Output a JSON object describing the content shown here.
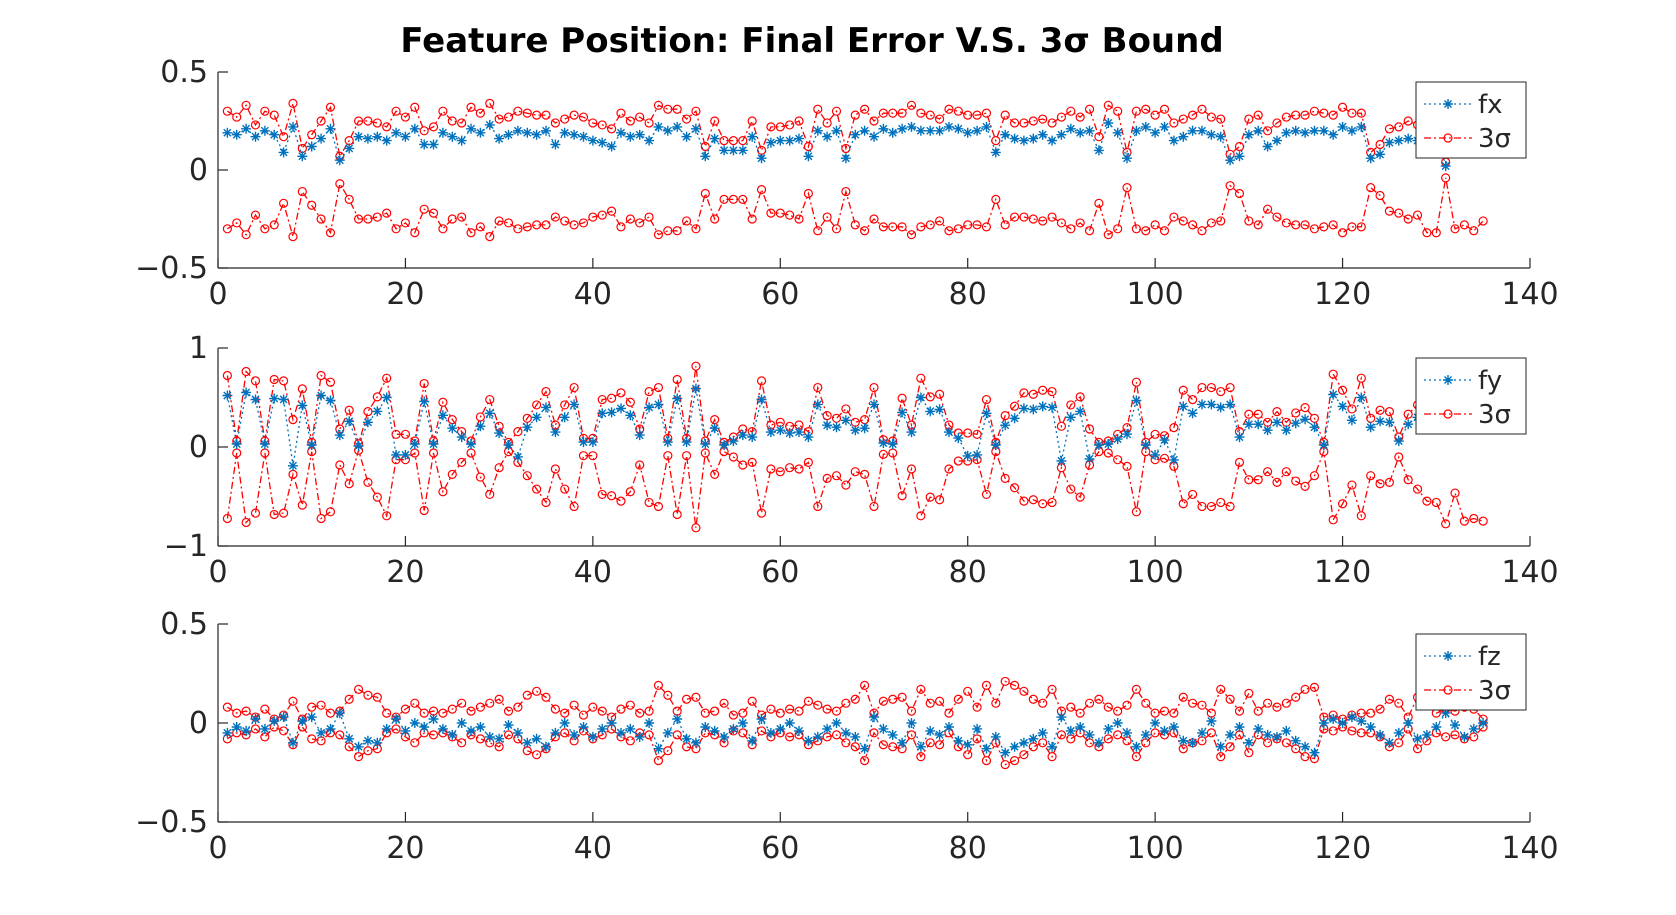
{
  "title": "Feature Position: Final Error V.S. 3σ Bound",
  "colors": {
    "estimate": "#0072BD",
    "bound": "#FF0000",
    "axis": "#262626"
  },
  "chart_data": [
    {
      "type": "line",
      "name": "fx",
      "xlim": [
        0,
        140
      ],
      "ylim": [
        -0.5,
        0.5
      ],
      "xticks": [
        0,
        20,
        40,
        60,
        80,
        100,
        120,
        140
      ],
      "yticks": [
        -0.5,
        0,
        0.5
      ],
      "xtick_labels": [
        "0",
        "20",
        "40",
        "60",
        "80",
        "100",
        "120",
        "140"
      ],
      "ytick_labels": [
        "−0.5",
        "0",
        "0.5"
      ],
      "legend": [
        "fx",
        "3σ"
      ],
      "legend_position": "top-right",
      "x_start": 1,
      "estimate": [
        0.19,
        0.18,
        0.21,
        0.17,
        0.2,
        0.18,
        0.09,
        0.22,
        0.07,
        0.12,
        0.16,
        0.21,
        0.05,
        0.11,
        0.17,
        0.16,
        0.17,
        0.15,
        0.19,
        0.17,
        0.21,
        0.13,
        0.13,
        0.19,
        0.17,
        0.15,
        0.21,
        0.19,
        0.23,
        0.16,
        0.18,
        0.2,
        0.19,
        0.18,
        0.2,
        0.13,
        0.19,
        0.18,
        0.17,
        0.15,
        0.14,
        0.12,
        0.19,
        0.17,
        0.18,
        0.15,
        0.22,
        0.2,
        0.22,
        0.17,
        0.21,
        0.07,
        0.16,
        0.1,
        0.1,
        0.1,
        0.17,
        0.06,
        0.14,
        0.15,
        0.15,
        0.16,
        0.07,
        0.2,
        0.17,
        0.2,
        0.06,
        0.18,
        0.2,
        0.17,
        0.21,
        0.19,
        0.21,
        0.22,
        0.2,
        0.2,
        0.2,
        0.22,
        0.21,
        0.19,
        0.2,
        0.22,
        0.09,
        0.18,
        0.16,
        0.15,
        0.16,
        0.18,
        0.15,
        0.18,
        0.21,
        0.19,
        0.2,
        0.1,
        0.24,
        0.19,
        0.06,
        0.2,
        0.22,
        0.19,
        0.22,
        0.15,
        0.17,
        0.2,
        0.2,
        0.18,
        0.17,
        0.05,
        0.07,
        0.18,
        0.2,
        0.12,
        0.15,
        0.19,
        0.2,
        0.19,
        0.2,
        0.2,
        0.18,
        0.22,
        0.2,
        0.22,
        0.06,
        0.08,
        0.14,
        0.15,
        0.16,
        0.15,
        0.2,
        0.2,
        0.02,
        0.22,
        0.2,
        0.21,
        0.19
      ],
      "bound_upper": [
        0.3,
        0.27,
        0.33,
        0.23,
        0.3,
        0.28,
        0.17,
        0.34,
        0.11,
        0.18,
        0.25,
        0.32,
        0.07,
        0.15,
        0.25,
        0.25,
        0.24,
        0.22,
        0.3,
        0.27,
        0.32,
        0.2,
        0.22,
        0.3,
        0.25,
        0.24,
        0.32,
        0.29,
        0.34,
        0.26,
        0.27,
        0.3,
        0.29,
        0.28,
        0.28,
        0.24,
        0.26,
        0.28,
        0.27,
        0.24,
        0.23,
        0.21,
        0.29,
        0.25,
        0.27,
        0.24,
        0.33,
        0.31,
        0.31,
        0.26,
        0.3,
        0.12,
        0.25,
        0.15,
        0.15,
        0.15,
        0.25,
        0.1,
        0.22,
        0.22,
        0.23,
        0.25,
        0.12,
        0.31,
        0.24,
        0.3,
        0.11,
        0.28,
        0.31,
        0.25,
        0.29,
        0.29,
        0.29,
        0.33,
        0.29,
        0.28,
        0.26,
        0.31,
        0.3,
        0.28,
        0.28,
        0.29,
        0.15,
        0.28,
        0.24,
        0.24,
        0.25,
        0.26,
        0.24,
        0.27,
        0.3,
        0.27,
        0.31,
        0.17,
        0.33,
        0.3,
        0.09,
        0.3,
        0.31,
        0.28,
        0.31,
        0.24,
        0.26,
        0.28,
        0.31,
        0.27,
        0.26,
        0.08,
        0.12,
        0.26,
        0.28,
        0.2,
        0.24,
        0.27,
        0.28,
        0.28,
        0.3,
        0.29,
        0.28,
        0.32,
        0.29,
        0.29,
        0.09,
        0.13,
        0.21,
        0.22,
        0.25,
        0.23,
        0.32,
        0.32,
        0.04,
        0.3,
        0.28,
        0.31,
        0.26
      ]
    },
    {
      "type": "line",
      "name": "fy",
      "xlim": [
        0,
        140
      ],
      "ylim": [
        -1,
        1
      ],
      "xticks": [
        0,
        20,
        40,
        60,
        80,
        100,
        120,
        140
      ],
      "yticks": [
        -1,
        0,
        1
      ],
      "xtick_labels": [
        "0",
        "20",
        "40",
        "60",
        "80",
        "100",
        "120",
        "140"
      ],
      "ytick_labels": [
        "−1",
        "0",
        "1"
      ],
      "legend": [
        "fy",
        "3σ"
      ],
      "legend_position": "top-right",
      "x_start": 1,
      "estimate": [
        0.52,
        0.03,
        0.55,
        0.48,
        0.03,
        0.49,
        0.48,
        -0.19,
        0.42,
        0.02,
        0.52,
        0.47,
        0.12,
        0.26,
        0.01,
        0.25,
        0.36,
        0.5,
        -0.08,
        -0.08,
        0.03,
        0.46,
        0.03,
        0.32,
        0.19,
        0.1,
        0.03,
        0.21,
        0.34,
        0.14,
        0.02,
        -0.1,
        0.2,
        0.3,
        0.4,
        0.15,
        0.3,
        0.43,
        0.05,
        0.05,
        0.34,
        0.35,
        0.39,
        0.32,
        0.12,
        0.4,
        0.43,
        0.05,
        0.49,
        0.05,
        0.59,
        0.03,
        0.19,
        0.02,
        0.06,
        0.12,
        0.1,
        0.48,
        0.15,
        0.17,
        0.14,
        0.15,
        0.1,
        0.43,
        0.22,
        0.2,
        0.27,
        0.17,
        0.19,
        0.43,
        0.04,
        0.03,
        0.35,
        0.15,
        0.5,
        0.36,
        0.38,
        0.15,
        0.09,
        -0.09,
        -0.08,
        0.34,
        0.02,
        0.22,
        0.29,
        0.39,
        0.38,
        0.41,
        0.4,
        -0.14,
        0.3,
        0.36,
        -0.12,
        0.02,
        0.03,
        0.08,
        0.13,
        0.47,
        0.02,
        -0.08,
        0.07,
        -0.13,
        0.41,
        0.34,
        0.43,
        0.43,
        0.4,
        0.43,
        0.1,
        0.23,
        0.23,
        0.17,
        0.25,
        0.17,
        0.24,
        0.28,
        0.2,
        0.02,
        0.53,
        0.41,
        0.27,
        0.5,
        0.2,
        0.26,
        0.25,
        0.06,
        0.23,
        0.3,
        0.39,
        0.4,
        0.56,
        0.33,
        0.54,
        0.52,
        0.54
      ]
    },
    {
      "type": "line",
      "name": "fz",
      "xlim": [
        0,
        140
      ],
      "ylim": [
        -0.5,
        0.5
      ],
      "xticks": [
        0,
        20,
        40,
        60,
        80,
        100,
        120,
        140
      ],
      "yticks": [
        -0.5,
        0,
        0.5
      ],
      "xtick_labels": [
        "0",
        "20",
        "40",
        "60",
        "80",
        "100",
        "120",
        "140"
      ],
      "ytick_labels": [
        "−0.5",
        "0",
        "0.5"
      ],
      "legend": [
        "fz",
        "3σ"
      ],
      "legend_position": "top-right",
      "x_start": 1,
      "estimate": [
        -0.05,
        -0.02,
        -0.04,
        0.02,
        -0.03,
        0.01,
        0.03,
        -0.1,
        0.01,
        0.03,
        -0.05,
        -0.03,
        0.05,
        -0.08,
        -0.12,
        -0.09,
        -0.1,
        -0.03,
        0.02,
        -0.04,
        0.0,
        -0.02,
        0.02,
        -0.03,
        -0.06,
        0.0,
        -0.04,
        -0.02,
        -0.07,
        -0.08,
        -0.01,
        -0.05,
        -0.1,
        -0.08,
        -0.12,
        -0.05,
        0.0,
        -0.06,
        -0.02,
        -0.07,
        -0.03,
        0.0,
        -0.05,
        -0.03,
        -0.07,
        0.0,
        -0.13,
        -0.05,
        0.02,
        -0.08,
        -0.1,
        -0.02,
        -0.04,
        -0.07,
        -0.03,
        0.0,
        -0.09,
        0.02,
        -0.05,
        -0.03,
        0.0,
        -0.04,
        -0.09,
        -0.07,
        -0.03,
        0.0,
        -0.05,
        -0.07,
        -0.13,
        0.03,
        -0.03,
        -0.06,
        -0.1,
        0.0,
        -0.12,
        -0.04,
        -0.06,
        -0.02,
        -0.09,
        -0.11,
        -0.03,
        -0.13,
        -0.07,
        -0.15,
        -0.12,
        -0.1,
        -0.08,
        -0.05,
        -0.12,
        0.03,
        -0.04,
        -0.02,
        -0.06,
        -0.1,
        -0.03,
        0.0,
        -0.05,
        -0.12,
        -0.06,
        0.0,
        -0.04,
        -0.02,
        -0.09,
        -0.1,
        -0.05,
        0.01,
        -0.12,
        -0.06,
        -0.02,
        -0.1,
        -0.03,
        -0.06,
        -0.07,
        -0.04,
        -0.09,
        -0.12,
        -0.15,
        0.0,
        0.02,
        0.0,
        0.03,
        0.01,
        -0.02,
        -0.06,
        -0.1,
        -0.05,
        0.0,
        -0.08,
        -0.06,
        -0.02,
        0.05,
        -0.01,
        -0.07,
        -0.03,
        0.0
      ],
      "bound_upper": [
        0.08,
        0.05,
        0.06,
        0.03,
        0.07,
        0.02,
        0.04,
        0.11,
        0.02,
        0.08,
        0.09,
        0.05,
        0.06,
        0.12,
        0.17,
        0.14,
        0.13,
        0.05,
        0.03,
        0.07,
        0.1,
        0.05,
        0.06,
        0.05,
        0.07,
        0.1,
        0.06,
        0.08,
        0.1,
        0.12,
        0.06,
        0.08,
        0.14,
        0.16,
        0.13,
        0.07,
        0.05,
        0.09,
        0.04,
        0.08,
        0.06,
        0.03,
        0.07,
        0.09,
        0.05,
        0.06,
        0.19,
        0.14,
        0.06,
        0.12,
        0.13,
        0.05,
        0.06,
        0.1,
        0.04,
        0.05,
        0.11,
        0.04,
        0.07,
        0.05,
        0.07,
        0.06,
        0.11,
        0.09,
        0.07,
        0.06,
        0.1,
        0.12,
        0.19,
        0.05,
        0.11,
        0.12,
        0.13,
        0.06,
        0.17,
        0.1,
        0.11,
        0.05,
        0.12,
        0.16,
        0.08,
        0.19,
        0.1,
        0.21,
        0.19,
        0.16,
        0.12,
        0.1,
        0.17,
        0.06,
        0.08,
        0.05,
        0.1,
        0.12,
        0.08,
        0.06,
        0.09,
        0.17,
        0.1,
        0.05,
        0.06,
        0.05,
        0.13,
        0.1,
        0.09,
        0.05,
        0.17,
        0.12,
        0.06,
        0.15,
        0.06,
        0.1,
        0.08,
        0.1,
        0.13,
        0.17,
        0.18,
        0.03,
        0.04,
        0.02,
        0.04,
        0.05,
        0.05,
        0.07,
        0.12,
        0.1,
        0.03,
        0.13,
        0.09,
        0.05,
        0.07,
        0.06,
        0.08,
        0.07,
        0.02
      ]
    }
  ]
}
